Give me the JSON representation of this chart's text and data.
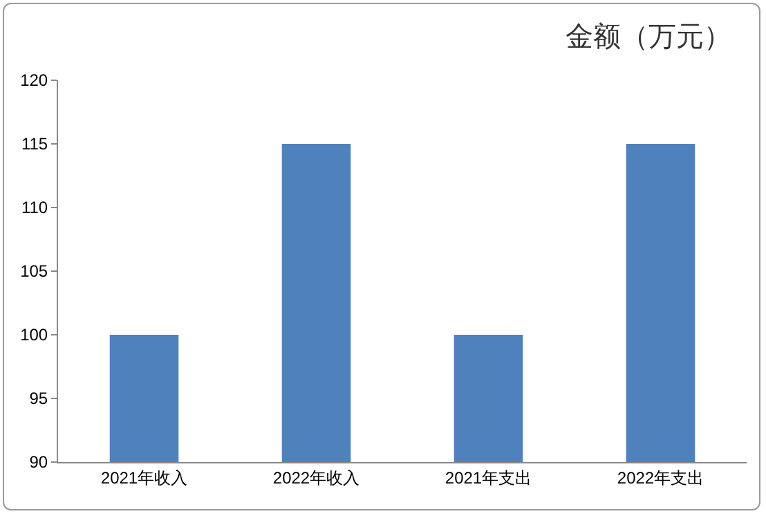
{
  "chart_data": {
    "type": "bar",
    "title": "金额（万元）",
    "categories": [
      "2021年收入",
      "2022年收入",
      "2021年支出",
      "2022年支出"
    ],
    "values": [
      100,
      115,
      100,
      115
    ],
    "color": "#4f81bd",
    "ylim": [
      90,
      120
    ],
    "yticks": [
      90,
      95,
      100,
      105,
      110,
      115,
      120
    ],
    "grid": false
  }
}
